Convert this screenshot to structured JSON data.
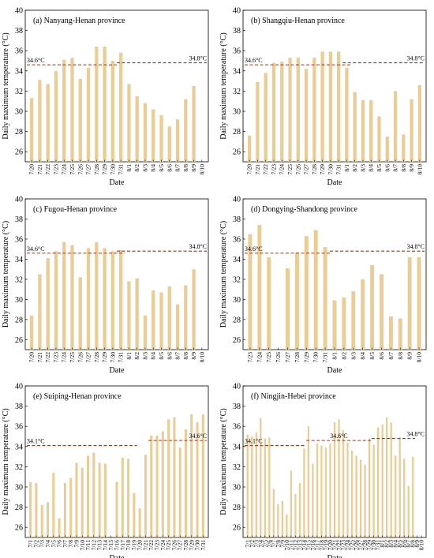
{
  "chart_data": [
    {
      "type": "bar",
      "title": "(a) Nanyang-Henan province",
      "xlabel": "Date",
      "ylabel": "Daily maximum temperature (°C)",
      "ylim": [
        25,
        40
      ],
      "yticks": [
        26,
        28,
        30,
        32,
        34,
        36,
        38,
        40
      ],
      "categories": [
        "7/20",
        "7/21",
        "7/22",
        "7/23",
        "7/24",
        "7/25",
        "7/26",
        "7/27",
        "7/28",
        "7/29",
        "7/30",
        "7/31",
        "8/1",
        "8/2",
        "8/3",
        "8/4",
        "8/5",
        "8/6",
        "8/7",
        "8/8",
        "8/9",
        "8/10"
      ],
      "x_tick_labels": [
        "7/20",
        "7/21",
        "7/22",
        "7/23",
        "7/24",
        "7/25",
        "7/26",
        "7/27",
        "7/28",
        "7/29",
        "7/30",
        "7/31",
        "8/1",
        "8/2",
        "8/3",
        "8/4",
        "8/5",
        "8/6",
        "8/7",
        "8/8",
        "8/9",
        "8/10"
      ],
      "values": [
        31.3,
        33.1,
        32.7,
        34.0,
        35.1,
        35.3,
        33.2,
        34.3,
        36.4,
        36.4,
        35.0,
        35.8,
        32.7,
        31.5,
        30.8,
        30.2,
        29.6,
        28.5,
        29.2,
        31.2,
        32.5,
        null
      ],
      "reference_lines": [
        {
          "label": "34.6°C",
          "value": 34.6,
          "from": 0,
          "to": 10
        },
        {
          "label": "34.8°C",
          "value": 34.8,
          "from": 11,
          "to": 21
        }
      ]
    },
    {
      "type": "bar",
      "title": "(b) Shangqiu-Henan province",
      "xlabel": "Date",
      "ylabel": "Daily maximum temperature (°C)",
      "ylim": [
        25,
        40
      ],
      "yticks": [
        26,
        28,
        30,
        32,
        34,
        36,
        38,
        40
      ],
      "categories": [
        "7/20",
        "7/21",
        "7/22",
        "7/23",
        "7/24",
        "7/25",
        "7/26",
        "7/27",
        "7/28",
        "7/29",
        "7/30",
        "7/31",
        "8/1",
        "8/2",
        "8/3",
        "8/4",
        "8/5",
        "8/6",
        "8/7",
        "8/8",
        "8/9",
        "8/10"
      ],
      "x_tick_labels": [
        "7/20",
        "7/21",
        "7/22",
        "7/23",
        "7/24",
        "7/25",
        "7/26",
        "7/27",
        "7/28",
        "7/29",
        "7/30",
        "7/31",
        "8/1",
        "8/2",
        "8/3",
        "8/4",
        "8/5",
        "8/6",
        "8/7",
        "8/8",
        "8/9",
        "8/10"
      ],
      "values": [
        27.6,
        32.9,
        33.8,
        34.8,
        34.9,
        35.3,
        35.3,
        34.2,
        35.3,
        35.9,
        35.9,
        35.9,
        34.3,
        31.9,
        31.1,
        31.1,
        29.5,
        27.5,
        32.0,
        27.7,
        31.2,
        32.6
      ],
      "reference_lines": [
        {
          "label": "34.6°C",
          "value": 34.6,
          "from": 0,
          "to": 12
        },
        {
          "label": "34.8°C",
          "value": 34.8,
          "from": 12,
          "to": 21
        }
      ]
    },
    {
      "type": "bar",
      "title": "(c) Fugou-Henan province",
      "xlabel": "Date",
      "ylabel": "Daily maximum temperature (°C)",
      "ylim": [
        25,
        40
      ],
      "yticks": [
        26,
        28,
        30,
        32,
        34,
        36,
        38,
        40
      ],
      "categories": [
        "7/20",
        "7/21",
        "7/22",
        "7/23",
        "7/24",
        "7/25",
        "7/26",
        "7/27",
        "7/28",
        "7/29",
        "7/30",
        "7/31",
        "8/1",
        "8/2",
        "8/3",
        "8/4",
        "8/5",
        "8/6",
        "8/7",
        "8/8",
        "8/9",
        "8/10"
      ],
      "x_tick_labels": [
        "7/20",
        "7/21",
        "7/22",
        "7/23",
        "7/24",
        "7/25",
        "7/26",
        "7/27",
        "7/28",
        "7/29",
        "7/30",
        "7/31",
        "8/1",
        "8/2",
        "8/3",
        "8/4",
        "8/5",
        "8/6",
        "8/7",
        "8/8",
        "8/9",
        "8/10"
      ],
      "values": [
        28.4,
        32.5,
        34.1,
        34.8,
        35.7,
        35.4,
        32.2,
        35.1,
        35.7,
        35.1,
        34.8,
        34.9,
        31.8,
        32.1,
        28.4,
        30.9,
        30.7,
        31.3,
        29.5,
        31.4,
        33.0,
        null
      ],
      "reference_lines": [
        {
          "label": "34.6°C",
          "value": 34.6,
          "from": 0,
          "to": 11
        },
        {
          "label": "34.8°C",
          "value": 34.8,
          "from": 11,
          "to": 21
        }
      ]
    },
    {
      "type": "bar",
      "title": "(d) Dongying-Shandong province",
      "xlabel": "Date",
      "ylabel": "Daily maximum temperature (°C)",
      "ylim": [
        25,
        40
      ],
      "yticks": [
        26,
        28,
        30,
        32,
        34,
        36,
        38,
        40
      ],
      "categories": [
        "7/23",
        "7/24",
        "7/25",
        "7/26",
        "7/27",
        "7/28",
        "7/29",
        "7/30",
        "7/31",
        "8/1",
        "8/2",
        "8/3",
        "8/4",
        "8/5",
        "8/6",
        "8/7",
        "8/8",
        "8/9",
        "8/10"
      ],
      "x_tick_labels": [
        "7/23",
        "7/24",
        "7/25",
        "7/26",
        "7/27",
        "7/28",
        "7/29",
        "7/30",
        "7/31",
        "8/1",
        "8/2",
        "8/3",
        "8/4",
        "8/5",
        "8/6",
        "8/7",
        "8/8",
        "8/9",
        "8/10"
      ],
      "values": [
        36.5,
        37.4,
        34.2,
        null,
        33.1,
        34.7,
        36.3,
        36.9,
        35.2,
        29.9,
        30.2,
        30.8,
        32.0,
        33.4,
        32.5,
        28.3,
        28.1,
        34.2,
        34.2
      ],
      "reference_lines": [
        {
          "label": "34.6°C",
          "value": 34.6,
          "from": 0,
          "to": 8
        },
        {
          "label": "34.8°C",
          "value": 34.8,
          "from": 9,
          "to": 18
        }
      ]
    },
    {
      "type": "bar",
      "title": "(e) Suiping-Henan province",
      "xlabel": "Date",
      "ylabel": "Daily maximum temperature (°C)",
      "ylim": [
        25,
        40
      ],
      "yticks": [
        26,
        28,
        30,
        32,
        34,
        36,
        38,
        40
      ],
      "categories": [
        "7/1",
        "7/2",
        "7/3",
        "7/4",
        "7/5",
        "7/6",
        "7/7",
        "7/8",
        "7/9",
        "7/10",
        "7/11",
        "7/12",
        "7/13",
        "7/14",
        "7/15",
        "7/16",
        "7/17",
        "7/18",
        "7/19",
        "7/20",
        "7/21",
        "7/22",
        "7/23",
        "7/24",
        "7/25",
        "7/26",
        "7/27",
        "7/28",
        "7/29",
        "7/30",
        "7/31"
      ],
      "x_tick_labels": [
        "7/1",
        "7/2",
        "7/3",
        "7/4",
        "7/5",
        "7/6",
        "7/7",
        "7/8",
        "7/9",
        "7/10",
        "7/11",
        "7/12",
        "7/13",
        "7/14",
        "7/15",
        "7/16",
        "7/17",
        "7/18",
        "7/19",
        "7/20",
        "7/21",
        "7/22",
        "7/23",
        "7/24",
        "7/25",
        "7/26",
        "7/27",
        "7/28",
        "7/29",
        "7/30",
        "7/31"
      ],
      "values": [
        30.5,
        30.4,
        28.2,
        28.5,
        31.4,
        26.9,
        30.4,
        30.9,
        32.4,
        31.9,
        33.1,
        33.4,
        32.4,
        32.3,
        null,
        30.5,
        32.9,
        32.8,
        29.4,
        27.9,
        33.2,
        35.1,
        35.1,
        35.5,
        36.7,
        36.9,
        33.9,
        35.7,
        37.2,
        36.4,
        37.2
      ],
      "reference_lines": [
        {
          "label": "34.1°C",
          "value": 34.1,
          "from": 0,
          "to": 18
        },
        {
          "label": "34.6°C",
          "value": 34.6,
          "from": 21,
          "to": 30
        }
      ]
    },
    {
      "type": "bar",
      "title": "(f) Ningjin-Hebei province",
      "xlabel": "Date",
      "ylabel": "Daily maximum temperature (°C)",
      "ylim": [
        25,
        40
      ],
      "yticks": [
        26,
        28,
        30,
        32,
        34,
        36,
        38,
        40
      ],
      "categories": [
        "7/1",
        "7/2",
        "7/3",
        "7/4",
        "7/5",
        "7/6",
        "7/7",
        "7/8",
        "7/9",
        "7/10",
        "7/11",
        "7/12",
        "7/13",
        "7/14",
        "7/15",
        "7/16",
        "7/17",
        "7/18",
        "7/19",
        "7/20",
        "7/21",
        "7/22",
        "7/23",
        "7/24",
        "7/25",
        "7/26",
        "7/27",
        "7/28",
        "7/29",
        "7/30",
        "7/31",
        "8/1",
        "8/2",
        "8/3",
        "8/4",
        "8/5",
        "8/6",
        "8/7",
        "8/8",
        "8/9",
        "8/10"
      ],
      "x_tick_labels": [
        "7/1",
        "7/2",
        "7/3",
        "7/4",
        "7/5",
        "7/6",
        "7/7",
        "7/8",
        "7/9",
        "7/10",
        "7/11",
        "7/12",
        "7/13",
        "7/14",
        "7/15",
        "7/16",
        "7/17",
        "7/18",
        "7/19",
        "7/20",
        "7/21",
        "7/22",
        "7/23",
        "7/24",
        "7/25",
        "7/26",
        "7/27",
        "7/28",
        "7/29",
        "7/30",
        "7/31",
        "8/1",
        "8/2",
        "8/3",
        "8/4",
        "8/5",
        "8/6",
        "8/7",
        "8/8",
        "8/9",
        "8/10"
      ],
      "values": [
        35.2,
        35.0,
        35.4,
        36.8,
        34.8,
        34.9,
        29.8,
        28.3,
        28.6,
        27.3,
        31.6,
        29.3,
        30.4,
        33.8,
        36.0,
        32.3,
        34.3,
        34.1,
        33.9,
        34.3,
        36.4,
        36.7,
        35.6,
        34.4,
        33.6,
        33.1,
        32.7,
        32.2,
        34.8,
        34.2,
        35.9,
        36.2,
        36.9,
        36.4,
        33.1,
        34.9,
        32.8,
        30.1,
        33.0,
        null,
        null
      ],
      "reference_lines": [
        {
          "label": "34.1°C",
          "value": 34.1,
          "from": 0,
          "to": 13
        },
        {
          "label": "34.6°C",
          "value": 34.6,
          "from": 14,
          "to": 28
        },
        {
          "label": "34.8°C",
          "value": 34.8,
          "from": 29,
          "to": 38
        }
      ]
    }
  ]
}
